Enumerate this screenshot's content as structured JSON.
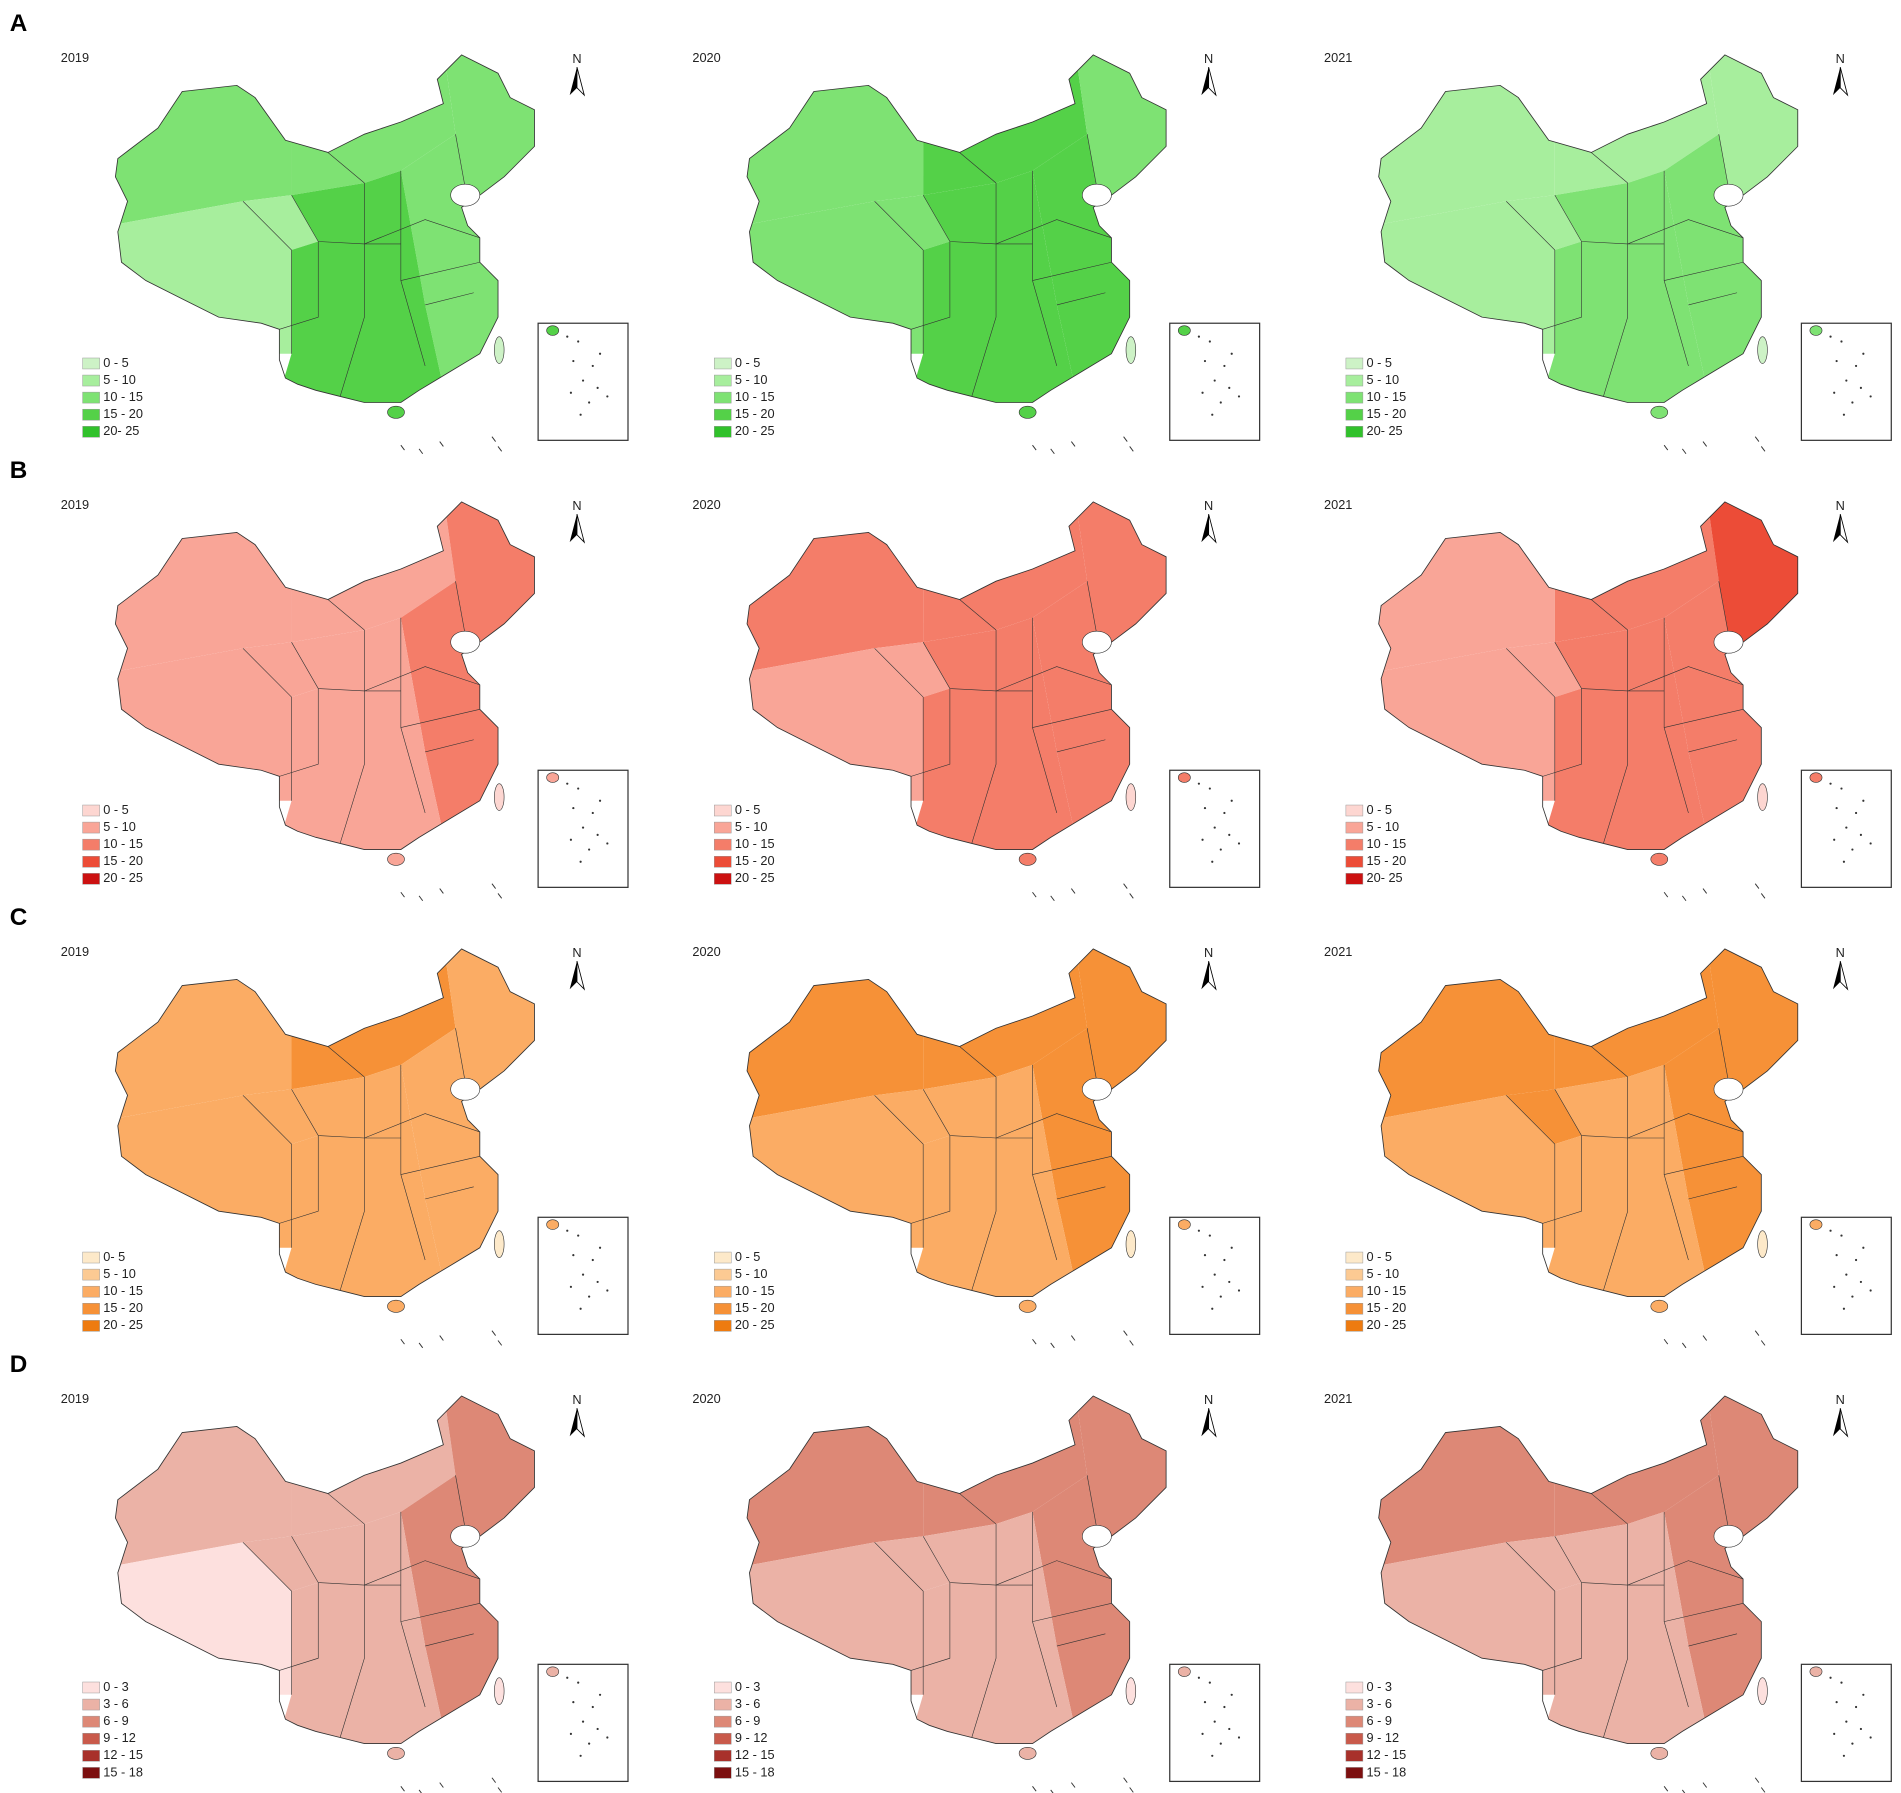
{
  "north_label": "N",
  "rows": [
    {
      "label": "A",
      "colors": [
        "#cdf2c6",
        "#a7ee9d",
        "#7ee273",
        "#54d148",
        "#31c12b"
      ],
      "maps": [
        {
          "year": "2019",
          "legend": [
            "0 - 5",
            "5 - 10",
            "10 - 15",
            "15 - 20",
            "20- 25"
          ]
        },
        {
          "year": "2020",
          "legend": [
            "0 - 5",
            "5 - 10",
            "10 - 15",
            "15 - 20",
            "20 - 25"
          ]
        },
        {
          "year": "2021",
          "legend": [
            "0 - 5",
            "5 - 10",
            "10 - 15",
            "15 - 20",
            "20- 25"
          ]
        }
      ]
    },
    {
      "label": "B",
      "colors": [
        "#fdd6d1",
        "#f9a597",
        "#f47d69",
        "#ec4c37",
        "#cc1111"
      ],
      "maps": [
        {
          "year": "2019",
          "legend": [
            "0 - 5",
            "5 - 10",
            "10 - 15",
            "15 - 20",
            "20 - 25"
          ]
        },
        {
          "year": "2020",
          "legend": [
            "0 - 5",
            "5 - 10",
            "10 - 15",
            "15 - 20",
            "20 - 25"
          ]
        },
        {
          "year": "2021",
          "legend": [
            "0 - 5",
            "5 - 10",
            "10 - 15",
            "15 - 20",
            "20- 25"
          ]
        }
      ]
    },
    {
      "label": "C",
      "colors": [
        "#fde9c9",
        "#fcca93",
        "#fbac64",
        "#f69137",
        "#ee7b10"
      ],
      "maps": [
        {
          "year": "2019",
          "legend": [
            "0- 5",
            "5 - 10",
            "10 - 15",
            "15 - 20",
            "20 - 25"
          ]
        },
        {
          "year": "2020",
          "legend": [
            "0 - 5",
            "5 - 10",
            "10 - 15",
            "15 - 20",
            "20 - 25"
          ]
        },
        {
          "year": "2021",
          "legend": [
            "0 - 5",
            "5 - 10",
            "10 - 15",
            "15 - 20",
            "20 - 25"
          ]
        }
      ]
    },
    {
      "label": "D",
      "colors": [
        "#fde0de",
        "#ebb2a6",
        "#dd8876",
        "#c95a4b",
        "#a8312b",
        "#7c0f0f"
      ],
      "maps": [
        {
          "year": "2019",
          "legend": [
            "0 - 3",
            "3 - 6",
            "6 - 9",
            "9 - 12",
            "12 - 15",
            "15 - 18"
          ]
        },
        {
          "year": "2020",
          "legend": [
            "0 - 3",
            "3 - 6",
            "6 - 9",
            "9 - 12",
            "12 - 15",
            "15 - 18"
          ]
        },
        {
          "year": "2021",
          "legend": [
            "0 - 3",
            "3 - 6",
            "6 - 9",
            "9 - 12",
            "12 - 15",
            "15 - 18"
          ]
        }
      ]
    }
  ]
}
